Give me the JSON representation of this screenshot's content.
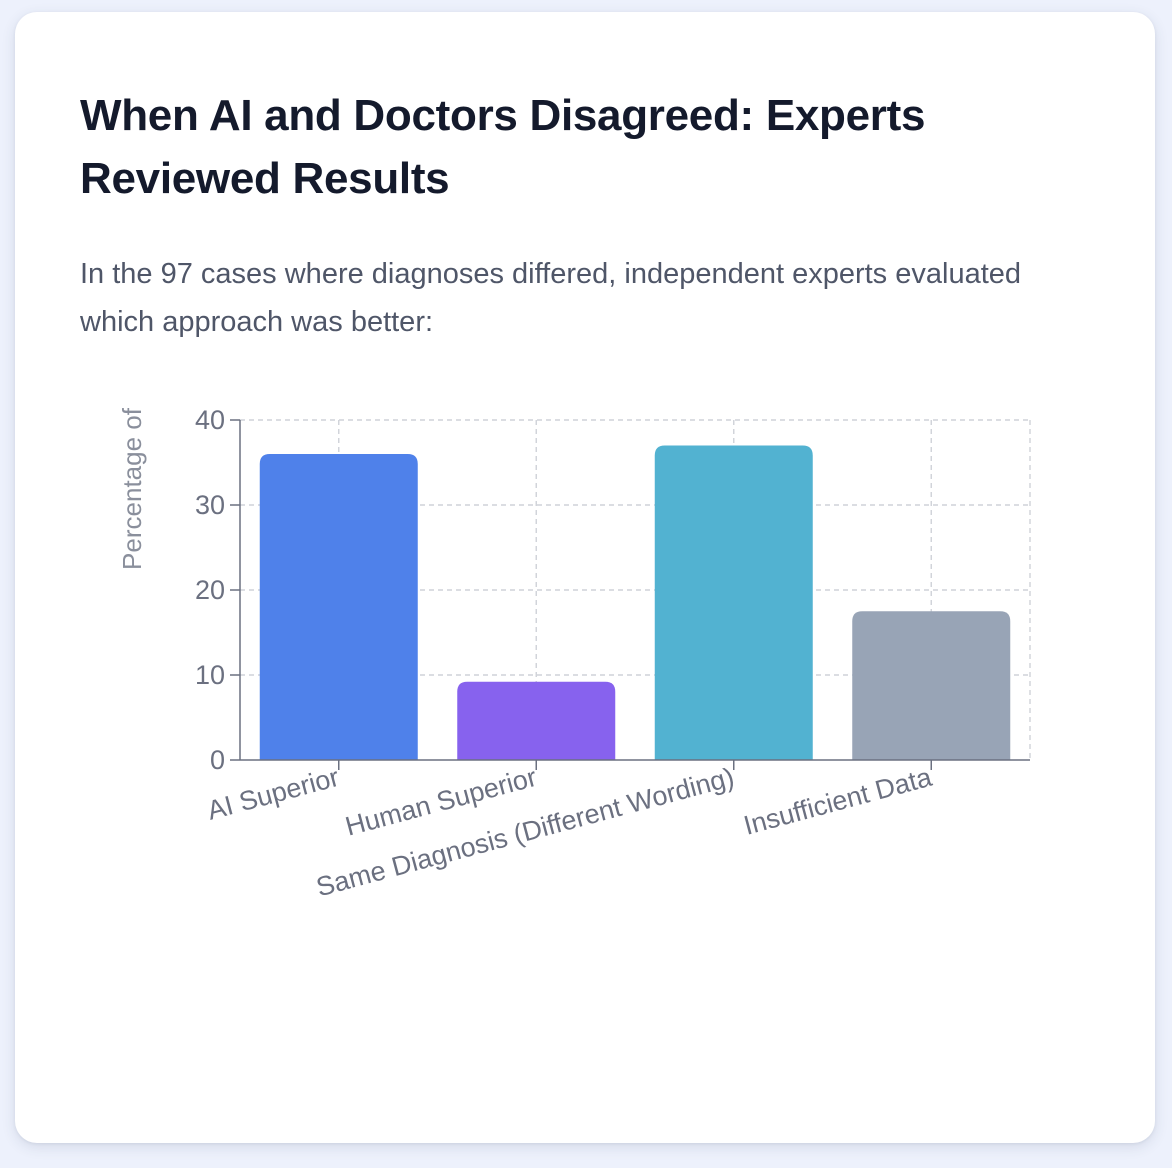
{
  "title": "When AI and Doctors Disagreed: Experts Reviewed Results",
  "subtitle": "In the 97 cases where diagnoses differed, independent experts evaluated which approach was better:",
  "colors": {
    "ai_superior": "#4f81ea",
    "human_superior": "#8762ee",
    "same_diagnosis": "#52b2d1",
    "insufficient_data": "#98a4b6"
  },
  "chart_data": {
    "type": "bar",
    "categories": [
      "AI Superior",
      "Human Superior",
      "Same Diagnosis (Different Wording)",
      "Insufficient Data"
    ],
    "values": [
      36,
      9.2,
      37,
      17.5
    ],
    "bar_colors": [
      "#4f81ea",
      "#8762ee",
      "#52b2d1",
      "#98a4b6"
    ],
    "ylabel": "Percentage of",
    "xlabel": "",
    "ylim": [
      0,
      40
    ],
    "yticks": [
      0,
      10,
      20,
      30,
      40
    ],
    "grid": true,
    "legend": "none"
  }
}
